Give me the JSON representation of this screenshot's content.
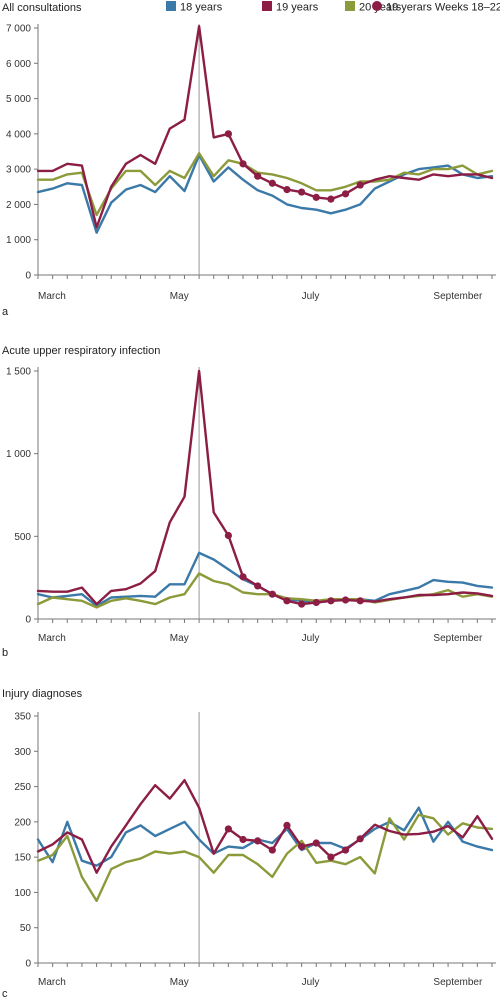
{
  "colors": {
    "y18": "#3a79a8",
    "y19": "#8c1d45",
    "y20": "#8c9a3a",
    "axis": "#777777",
    "vline": "#999999"
  },
  "legend": {
    "items": [
      {
        "label": "18 years",
        "key": "y18",
        "shape": "square"
      },
      {
        "label": "19 years",
        "key": "y19",
        "shape": "square"
      },
      {
        "label": "20 years",
        "key": "y20",
        "shape": "square"
      },
      {
        "label": "19 yerars Weeks 18–22",
        "key": "y19",
        "shape": "circle"
      }
    ]
  },
  "chart_data": [
    {
      "type": "line",
      "panel": "a",
      "title": "All consultations",
      "x_tick_labels": [
        "March",
        "May",
        "July",
        "September"
      ],
      "x_tick_weeks": [
        9,
        18,
        27,
        36
      ],
      "x": [
        9,
        10,
        11,
        12,
        13,
        14,
        15,
        16,
        17,
        18,
        19,
        20,
        21,
        22,
        23,
        24,
        25,
        26,
        27,
        28,
        29,
        30,
        31,
        32,
        33,
        34,
        35,
        36,
        37,
        38,
        39,
        40
      ],
      "ylim": [
        0,
        7000
      ],
      "yticks": [
        0,
        1000,
        2000,
        3000,
        4000,
        5000,
        6000,
        7000
      ],
      "ytick_labels": [
        "0",
        "1 000",
        "2 000",
        "3 000",
        "4 000",
        "5 000",
        "6 000",
        "7 000"
      ],
      "vertical_marker_week": 20,
      "series": [
        {
          "name": "18 years",
          "color_key": "y18",
          "values": [
            2350,
            2450,
            2600,
            2550,
            1200,
            2050,
            2420,
            2550,
            2350,
            2800,
            2380,
            3400,
            2650,
            3050,
            2700,
            2400,
            2250,
            2000,
            1900,
            1850,
            1750,
            1850,
            2000,
            2450,
            2650,
            2850,
            3000,
            3050,
            3100,
            2850,
            2750,
            2800
          ]
        },
        {
          "name": "19 years",
          "color_key": "y19",
          "highlight": [
            13,
            14,
            15,
            16,
            17,
            18,
            19,
            20,
            21,
            22
          ],
          "values": [
            2950,
            2950,
            3150,
            3100,
            1350,
            2500,
            3150,
            3400,
            3150,
            4150,
            4400,
            7050,
            3900,
            4000,
            3150,
            2800,
            2600,
            2420,
            2350,
            2200,
            2150,
            2300,
            2550,
            2700,
            2800,
            2750,
            2700,
            2850,
            2800,
            2850,
            2850,
            2750
          ]
        },
        {
          "name": "20 years",
          "color_key": "y20",
          "values": [
            2700,
            2700,
            2850,
            2900,
            1700,
            2450,
            2950,
            2950,
            2550,
            2950,
            2750,
            3450,
            2800,
            3250,
            3150,
            2900,
            2850,
            2750,
            2600,
            2400,
            2400,
            2500,
            2650,
            2650,
            2700,
            2900,
            2850,
            3000,
            3000,
            3100,
            2850,
            2950
          ]
        }
      ]
    },
    {
      "type": "line",
      "panel": "b",
      "title": "Acute upper respiratory infection",
      "x_tick_labels": [
        "March",
        "May",
        "July",
        "September"
      ],
      "x_tick_weeks": [
        9,
        18,
        27,
        36
      ],
      "x": [
        9,
        10,
        11,
        12,
        13,
        14,
        15,
        16,
        17,
        18,
        19,
        20,
        21,
        22,
        23,
        24,
        25,
        26,
        27,
        28,
        29,
        30,
        31,
        32,
        33,
        34,
        35,
        36,
        37,
        38,
        39,
        40
      ],
      "ylim": [
        0,
        1500
      ],
      "yticks": [
        0,
        500,
        1000,
        1500
      ],
      "ytick_labels": [
        "0",
        "500",
        "1 000",
        "1 500"
      ],
      "vertical_marker_week": 20,
      "series": [
        {
          "name": "18 years",
          "color_key": "y18",
          "values": [
            150,
            130,
            140,
            150,
            80,
            130,
            135,
            140,
            135,
            210,
            210,
            400,
            360,
            300,
            240,
            200,
            150,
            120,
            110,
            100,
            110,
            120,
            120,
            110,
            150,
            170,
            190,
            235,
            225,
            220,
            200,
            190
          ]
        },
        {
          "name": "19 years",
          "color_key": "y19",
          "highlight": [
            13,
            14,
            15,
            16,
            17,
            18,
            19,
            20,
            21,
            22
          ],
          "values": [
            170,
            165,
            165,
            190,
            90,
            170,
            180,
            215,
            290,
            585,
            740,
            1500,
            645,
            505,
            255,
            200,
            150,
            110,
            90,
            100,
            110,
            115,
            110,
            105,
            120,
            130,
            145,
            145,
            150,
            160,
            155,
            140
          ]
        },
        {
          "name": "20 years",
          "color_key": "y20",
          "values": [
            90,
            130,
            120,
            110,
            70,
            110,
            125,
            110,
            90,
            130,
            150,
            275,
            230,
            210,
            160,
            150,
            150,
            125,
            120,
            110,
            120,
            120,
            120,
            100,
            115,
            130,
            140,
            150,
            175,
            135,
            150,
            135
          ]
        }
      ]
    },
    {
      "type": "line",
      "panel": "c",
      "title": "Injury diagnoses",
      "x_tick_labels": [
        "March",
        "May",
        "July",
        "September"
      ],
      "x_tick_weeks": [
        9,
        18,
        27,
        36
      ],
      "x": [
        9,
        10,
        11,
        12,
        13,
        14,
        15,
        16,
        17,
        18,
        19,
        20,
        21,
        22,
        23,
        24,
        25,
        26,
        27,
        28,
        29,
        30,
        31,
        32,
        33,
        34,
        35,
        36,
        37,
        38,
        39,
        40
      ],
      "ylim": [
        0,
        350
      ],
      "yticks": [
        0,
        50,
        100,
        150,
        200,
        250,
        300,
        350
      ],
      "ytick_labels": [
        "0",
        "50",
        "100",
        "150",
        "200",
        "250",
        "300",
        "350"
      ],
      "vertical_marker_week": 20,
      "series": [
        {
          "name": "18 years",
          "color_key": "y18",
          "values": [
            175,
            143,
            200,
            145,
            138,
            150,
            185,
            195,
            180,
            190,
            200,
            175,
            155,
            165,
            163,
            175,
            170,
            190,
            160,
            170,
            170,
            162,
            175,
            190,
            200,
            188,
            220,
            172,
            200,
            172,
            165,
            160
          ]
        },
        {
          "name": "19 years",
          "color_key": "y19",
          "highlight": [
            13,
            14,
            15,
            16,
            17,
            18,
            19,
            20,
            21,
            22
          ],
          "values": [
            158,
            168,
            185,
            175,
            128,
            165,
            195,
            225,
            252,
            233,
            259,
            220,
            155,
            190,
            175,
            173,
            160,
            195,
            165,
            170,
            150,
            160,
            176,
            196,
            187,
            182,
            183,
            186,
            194,
            178,
            208,
            176
          ]
        },
        {
          "name": "20 years",
          "color_key": "y20",
          "values": [
            145,
            153,
            180,
            122,
            88,
            133,
            143,
            148,
            158,
            155,
            158,
            150,
            128,
            153,
            153,
            140,
            122,
            155,
            173,
            142,
            145,
            140,
            150,
            127,
            205,
            175,
            210,
            205,
            182,
            198,
            192,
            190
          ]
        }
      ]
    }
  ]
}
